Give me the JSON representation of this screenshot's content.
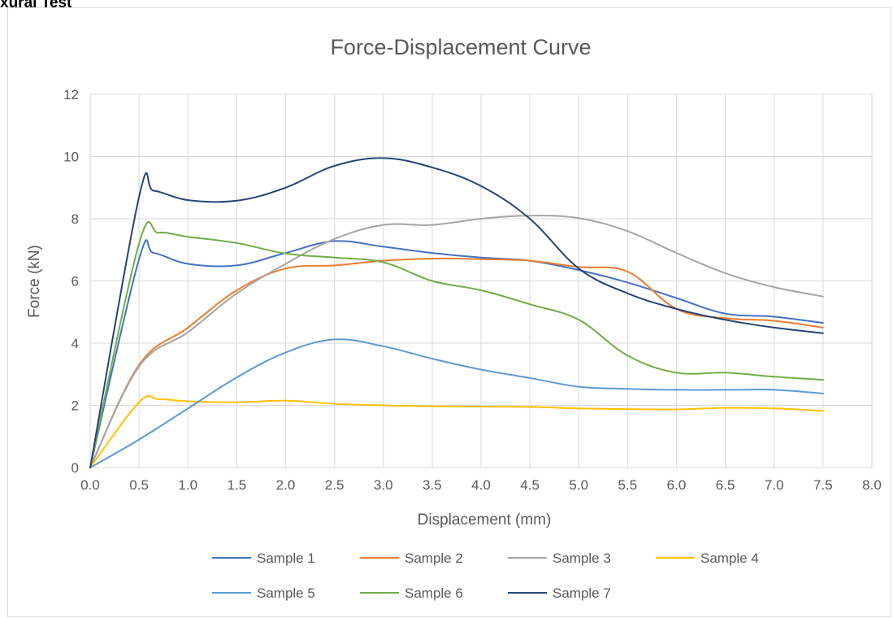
{
  "page": {
    "heading": "xural Test"
  },
  "chart_data": {
    "type": "line",
    "title": "Force-Displacement Curve",
    "xlabel": "Displacement (mm)",
    "ylabel": "Force (kN)",
    "xlim": [
      0,
      8
    ],
    "ylim": [
      0,
      12
    ],
    "x_ticks": [
      "0.0",
      "0.5",
      "1.0",
      "1.5",
      "2.0",
      "2.5",
      "3.0",
      "3.5",
      "4.0",
      "4.5",
      "5.0",
      "5.5",
      "6.0",
      "6.5",
      "7.0",
      "7.5",
      "8.0"
    ],
    "y_ticks": [
      "0",
      "2",
      "4",
      "6",
      "8",
      "10",
      "12"
    ],
    "grid": true,
    "legend_position": "bottom",
    "series": [
      {
        "name": "Sample 1",
        "color": "#4472C4",
        "x": [
          0,
          0.5,
          0.65,
          1.0,
          1.5,
          2.0,
          2.5,
          3.0,
          3.5,
          4.0,
          4.5,
          5.0,
          5.5,
          6.0,
          6.5,
          7.0,
          7.5
        ],
        "y": [
          0,
          6.7,
          6.9,
          6.55,
          6.5,
          6.9,
          7.28,
          7.1,
          6.9,
          6.75,
          6.65,
          6.35,
          5.95,
          5.45,
          4.95,
          4.85,
          4.65
        ]
      },
      {
        "name": "Sample 2",
        "color": "#ED7D31",
        "x": [
          0,
          0.5,
          1.0,
          1.5,
          2.0,
          2.5,
          3.0,
          3.5,
          4.0,
          4.5,
          5.0,
          5.5,
          6.0,
          6.5,
          7.0,
          7.5
        ],
        "y": [
          0,
          3.3,
          4.5,
          5.7,
          6.4,
          6.5,
          6.65,
          6.72,
          6.7,
          6.65,
          6.45,
          6.3,
          5.1,
          4.8,
          4.72,
          4.5
        ]
      },
      {
        "name": "Sample 3",
        "color": "#A5A5A5",
        "x": [
          0,
          0.5,
          1.0,
          1.5,
          2.0,
          2.5,
          3.0,
          3.5,
          4.0,
          4.5,
          5.0,
          5.5,
          6.0,
          6.5,
          7.0,
          7.5
        ],
        "y": [
          0,
          3.25,
          4.35,
          5.6,
          6.55,
          7.35,
          7.8,
          7.8,
          8.0,
          8.1,
          8.02,
          7.6,
          6.9,
          6.25,
          5.8,
          5.5
        ]
      },
      {
        "name": "Sample 4",
        "color": "#FFC000",
        "x": [
          0,
          0.5,
          0.7,
          1.0,
          1.5,
          2.0,
          2.5,
          3.0,
          3.5,
          4.0,
          4.5,
          5.0,
          5.5,
          6.0,
          6.5,
          7.0,
          7.5
        ],
        "y": [
          0,
          2.1,
          2.2,
          2.13,
          2.1,
          2.15,
          2.05,
          2.0,
          1.97,
          1.96,
          1.95,
          1.9,
          1.88,
          1.87,
          1.92,
          1.9,
          1.82
        ]
      },
      {
        "name": "Sample 5",
        "color": "#5B9BD5",
        "x": [
          0,
          0.5,
          1.0,
          1.5,
          2.0,
          2.5,
          3.0,
          3.5,
          4.0,
          4.5,
          5.0,
          5.5,
          6.0,
          6.5,
          7.0,
          7.5
        ],
        "y": [
          0,
          0.9,
          1.9,
          2.9,
          3.7,
          4.12,
          3.9,
          3.5,
          3.15,
          2.88,
          2.6,
          2.53,
          2.5,
          2.5,
          2.5,
          2.38
        ]
      },
      {
        "name": "Sample 6",
        "color": "#70AD47",
        "x": [
          0,
          0.5,
          0.7,
          1.0,
          1.5,
          2.0,
          2.5,
          3.0,
          3.5,
          4.0,
          4.5,
          5.0,
          5.5,
          6.0,
          6.5,
          7.0,
          7.5
        ],
        "y": [
          0,
          7.2,
          7.55,
          7.42,
          7.22,
          6.88,
          6.75,
          6.6,
          6.0,
          5.7,
          5.25,
          4.75,
          3.6,
          3.05,
          3.05,
          2.92,
          2.82
        ]
      },
      {
        "name": "Sample 7",
        "color": "#264478",
        "x": [
          0,
          0.5,
          0.65,
          1.0,
          1.5,
          2.0,
          2.5,
          3.0,
          3.5,
          4.0,
          4.5,
          5.0,
          5.5,
          6.0,
          6.5,
          7.0,
          7.5
        ],
        "y": [
          0,
          8.7,
          8.9,
          8.6,
          8.58,
          9.0,
          9.7,
          9.95,
          9.65,
          9.05,
          8.0,
          6.4,
          5.6,
          5.1,
          4.75,
          4.5,
          4.32
        ]
      }
    ]
  }
}
